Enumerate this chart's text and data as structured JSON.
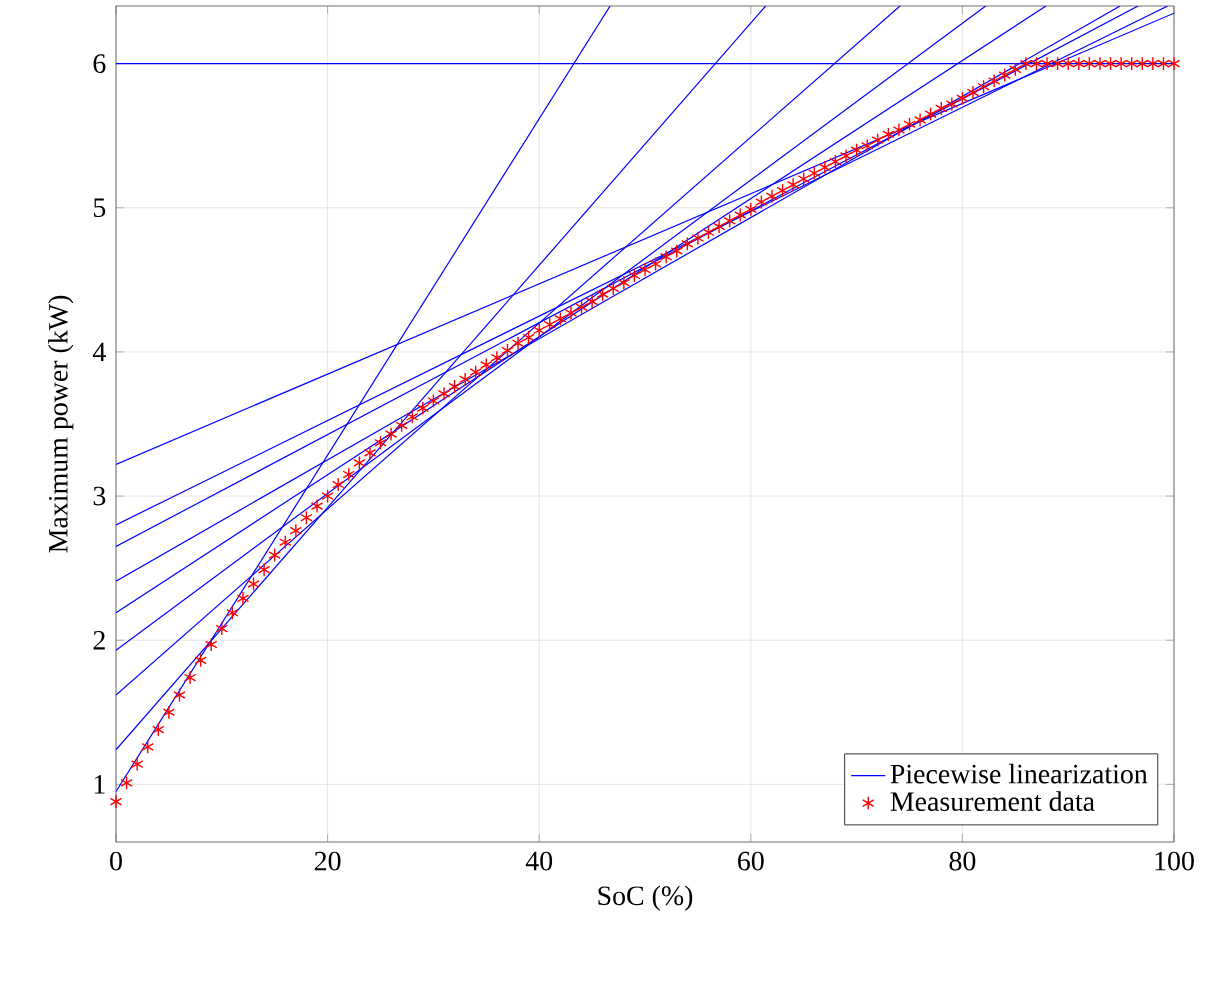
{
  "chart_data": {
    "type": "line",
    "xlabel": "SoC (%)",
    "ylabel": "Maximum power (kW)",
    "xlim": [
      0,
      100
    ],
    "ylim": [
      0.6,
      6.4
    ],
    "xticks": [
      0,
      20,
      40,
      60,
      80,
      100
    ],
    "yticks": [
      1,
      2,
      3,
      4,
      5,
      6
    ],
    "grid": true,
    "legend": "bottom right",
    "line_style": "solid",
    "series": [
      {
        "name": "Piecewise linearization",
        "color": "#0000ff",
        "x": [
          0,
          46.7
        ],
        "values": [
          0.95,
          6.4
        ]
      },
      {
        "color": "#0000ff",
        "x": [
          0,
          61.4
        ],
        "values": [
          1.24,
          6.4
        ]
      },
      {
        "color": "#0000ff",
        "x": [
          0,
          74.1
        ],
        "values": [
          1.62,
          6.4
        ]
      },
      {
        "color": "#0000ff",
        "x": [
          0,
          82.2
        ],
        "values": [
          1.93,
          6.4
        ]
      },
      {
        "color": "#0000ff",
        "x": [
          0,
          87.9
        ],
        "values": [
          2.19,
          6.4
        ]
      },
      {
        "color": "#0000ff",
        "x": [
          0,
          94.9
        ],
        "values": [
          2.41,
          6.4
        ]
      },
      {
        "color": "#0000ff",
        "x": [
          0,
          96.6
        ],
        "values": [
          2.65,
          6.4
        ]
      },
      {
        "color": "#0000ff",
        "x": [
          0,
          99.4
        ],
        "values": [
          2.8,
          6.4
        ]
      },
      {
        "color": "#0000ff",
        "x": [
          0,
          100
        ],
        "values": [
          3.22,
          6.35
        ]
      },
      {
        "color": "#0000ff",
        "x": [
          0,
          100
        ],
        "values": [
          6,
          6
        ]
      },
      {
        "name": "Measurement data",
        "type": "scatter",
        "color": "#ff0000",
        "marker": "cross",
        "x": [
          0,
          1,
          2,
          3,
          4,
          5,
          6,
          7,
          8,
          9,
          10,
          11,
          12,
          13,
          14,
          15,
          16,
          17,
          18,
          19,
          20,
          21,
          22,
          23,
          24,
          25,
          26,
          27,
          28,
          29,
          30,
          31,
          32,
          33,
          34,
          35,
          36,
          37,
          38,
          39,
          40,
          41,
          42,
          43,
          44,
          45,
          46,
          47,
          48,
          49,
          50,
          51,
          52,
          53,
          54,
          55,
          56,
          57,
          58,
          59,
          60,
          61,
          62,
          63,
          64,
          65,
          66,
          67,
          68,
          69,
          70,
          71,
          72,
          73,
          74,
          75,
          76,
          77,
          78,
          79,
          80,
          81,
          82,
          83,
          84,
          85,
          86,
          87,
          88,
          89,
          90,
          91,
          92,
          93,
          94,
          95,
          96,
          97,
          98,
          99,
          100
        ],
        "values": [
          0.88,
          1.01,
          1.14,
          1.26,
          1.38,
          1.5,
          1.62,
          1.74,
          1.86,
          1.97,
          2.08,
          2.19,
          2.29,
          2.39,
          2.49,
          2.59,
          2.68,
          2.76,
          2.85,
          2.93,
          3.0,
          3.08,
          3.15,
          3.23,
          3.3,
          3.37,
          3.43,
          3.49,
          3.55,
          3.61,
          3.66,
          3.71,
          3.76,
          3.81,
          3.86,
          3.91,
          3.96,
          4.01,
          4.06,
          4.1,
          4.15,
          4.19,
          4.23,
          4.27,
          4.31,
          4.35,
          4.4,
          4.44,
          4.48,
          4.53,
          4.57,
          4.61,
          4.66,
          4.7,
          4.75,
          4.79,
          4.83,
          4.87,
          4.91,
          4.95,
          4.99,
          5.04,
          5.08,
          5.12,
          5.16,
          5.2,
          5.24,
          5.28,
          5.32,
          5.36,
          5.4,
          5.43,
          5.47,
          5.51,
          5.54,
          5.58,
          5.61,
          5.65,
          5.69,
          5.72,
          5.76,
          5.8,
          5.84,
          5.88,
          5.92,
          5.96,
          6.0,
          6.0,
          6.0,
          6.0,
          6.0,
          6.0,
          6.0,
          6.0,
          6.0,
          6.0,
          6.0,
          6.0,
          6.0,
          6.0,
          6.0
        ]
      }
    ]
  }
}
